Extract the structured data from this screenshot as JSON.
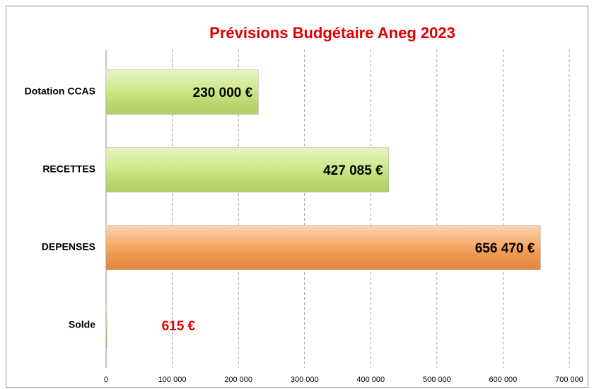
{
  "chart_data": {
    "type": "hbar",
    "title": "Prévisions Budgétaire Aneg 2023",
    "categories": [
      "Dotation CCAS",
      "RECETTES",
      "DEPENSES",
      "Solde"
    ],
    "values": [
      230000,
      427085,
      656470,
      615
    ],
    "value_labels": [
      "230 000 €",
      "427 085 €",
      "656 470 €",
      "615 €"
    ],
    "colors": [
      "#c3e36f",
      "#c3e36f",
      "#f79646",
      "#c3e36f"
    ],
    "value_label_colors": [
      "#000000",
      "#000000",
      "#000000",
      "#e00000"
    ],
    "title_color": "#e00000",
    "xlim": [
      0,
      700000
    ],
    "xticks": [
      0,
      {
        "value": 100000,
        "label": "100 000"
      },
      {
        "value": 200000,
        "label": "200 000"
      },
      {
        "value": 300000,
        "label": "300 000"
      },
      {
        "value": 400000,
        "label": "400 000"
      },
      {
        "value": 500000,
        "label": "500 000"
      },
      {
        "value": 600000,
        "label": "600 000"
      },
      {
        "value": 700000,
        "label": "700 000"
      }
    ],
    "grid": true
  }
}
